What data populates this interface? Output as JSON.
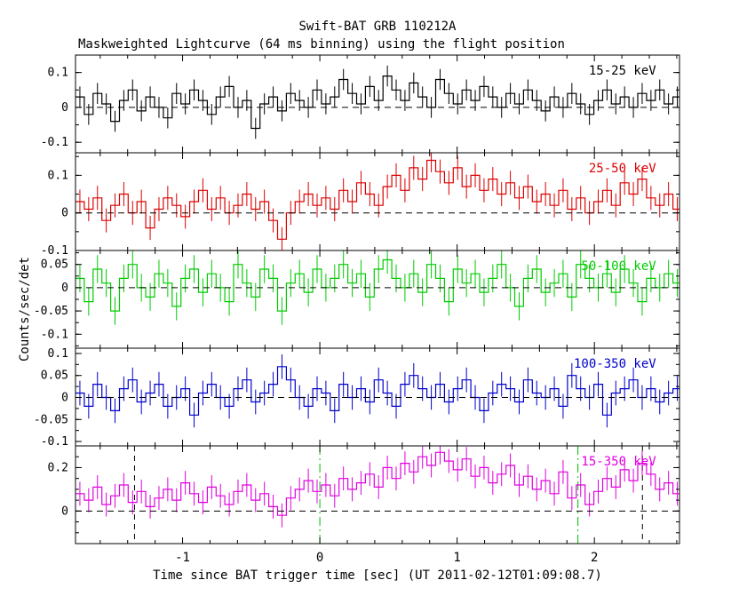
{
  "chart_data": {
    "type": "line",
    "title": "Swift-BAT GRB 110212A",
    "subtitle": "Maskweighted Lightcurve (64 ms binning) using the flight position",
    "xlabel": "Time since BAT trigger time [sec] (UT 2011-02-12T01:09:08.7)",
    "ylabel": "Counts/sec/det",
    "x_range": [
      -1.78,
      2.62
    ],
    "x_ticks": [
      -1,
      0,
      1,
      2
    ],
    "x_minor_step": 0.2,
    "x_start": -1.748,
    "bin_width": 0.064,
    "grid": false,
    "legend_position": "none",
    "vlines": [
      {
        "x": -1.35,
        "color": "#000000",
        "dash": "6,5",
        "name": "duration-marker-start"
      },
      {
        "x": 0.0,
        "color": "#00bb00",
        "dash": "10,4,2,4",
        "name": "t90-start"
      },
      {
        "x": 1.88,
        "color": "#00bb00",
        "dash": "10,4,2,4",
        "name": "t90-end"
      },
      {
        "x": 2.35,
        "color": "#000000",
        "dash": "6,5",
        "name": "duration-marker-end"
      }
    ],
    "panels": [
      {
        "name": "15-25",
        "label": "15-25 keV",
        "color": "#000000",
        "ylim": [
          -0.13,
          0.15
        ],
        "yticks": [
          -0.1,
          0,
          0.1
        ],
        "ytick_minor_step": 0.05,
        "err": 0.03,
        "y": [
          0.03,
          -0.02,
          0.04,
          0.01,
          -0.04,
          0.02,
          0.05,
          -0.01,
          0.03,
          0.0,
          -0.03,
          0.04,
          0.01,
          0.05,
          0.02,
          -0.02,
          0.03,
          0.06,
          0.0,
          0.02,
          -0.06,
          0.01,
          0.03,
          -0.01,
          0.04,
          0.02,
          0.0,
          0.05,
          0.01,
          0.03,
          0.08,
          0.04,
          0.01,
          0.06,
          0.02,
          0.09,
          0.05,
          0.02,
          0.07,
          0.03,
          0.0,
          0.08,
          0.04,
          0.01,
          0.05,
          0.02,
          0.06,
          0.03,
          0.0,
          0.04,
          0.01,
          0.05,
          0.02,
          -0.01,
          0.03,
          0.0,
          0.04,
          0.01,
          -0.02,
          0.02,
          0.05,
          0.01,
          0.03,
          0.0,
          0.04,
          0.02,
          0.05,
          0.01,
          0.03
        ]
      },
      {
        "name": "25-50",
        "label": "25-50 keV",
        "color": "#dd0000",
        "ylim": [
          -0.1,
          0.16
        ],
        "yticks": [
          -0.1,
          0,
          0.1
        ],
        "ytick_minor_step": 0.05,
        "err": 0.032,
        "y": [
          0.03,
          0.01,
          0.04,
          -0.02,
          0.02,
          0.05,
          0.0,
          0.03,
          -0.04,
          0.01,
          0.04,
          0.02,
          -0.01,
          0.03,
          0.06,
          0.01,
          0.04,
          0.0,
          0.02,
          0.05,
          0.01,
          0.03,
          -0.02,
          -0.07,
          0.0,
          0.03,
          0.05,
          0.02,
          0.04,
          0.01,
          0.06,
          0.03,
          0.08,
          0.05,
          0.02,
          0.07,
          0.1,
          0.06,
          0.12,
          0.09,
          0.14,
          0.11,
          0.08,
          0.12,
          0.07,
          0.1,
          0.06,
          0.09,
          0.05,
          0.08,
          0.04,
          0.07,
          0.03,
          0.05,
          0.02,
          0.06,
          0.01,
          0.04,
          0.0,
          0.03,
          0.06,
          0.02,
          0.08,
          0.05,
          0.09,
          0.04,
          0.02,
          0.05,
          0.01
        ]
      },
      {
        "name": "50-100",
        "label": "50-100 keV",
        "color": "#00cc00",
        "ylim": [
          -0.13,
          0.08
        ],
        "yticks": [
          -0.1,
          -0.05,
          0,
          0.05
        ],
        "ytick_minor_step": 0.025,
        "err": 0.03,
        "y": [
          0.02,
          -0.03,
          0.04,
          0.01,
          -0.05,
          0.02,
          0.05,
          0.0,
          -0.02,
          0.03,
          0.01,
          -0.04,
          0.02,
          0.04,
          -0.01,
          0.03,
          0.0,
          -0.03,
          0.05,
          0.01,
          -0.02,
          0.04,
          0.02,
          -0.05,
          0.01,
          0.03,
          -0.01,
          0.04,
          0.0,
          0.02,
          0.05,
          0.01,
          0.03,
          -0.02,
          0.04,
          0.06,
          0.02,
          0.0,
          0.03,
          -0.01,
          0.05,
          0.02,
          -0.03,
          0.04,
          0.01,
          0.03,
          -0.01,
          0.02,
          0.05,
          0.0,
          -0.04,
          0.02,
          0.04,
          -0.01,
          0.01,
          0.03,
          -0.02,
          0.05,
          0.02,
          0.0,
          0.03,
          -0.01,
          0.04,
          0.01,
          -0.03,
          0.02,
          0.0,
          0.03,
          0.01
        ]
      },
      {
        "name": "100-350",
        "label": "100-350 keV",
        "color": "#0000cd",
        "ylim": [
          -0.11,
          0.112
        ],
        "yticks": [
          -0.1,
          -0.05,
          0,
          0.05,
          0.1
        ],
        "ytick_minor_step": 0.025,
        "err": 0.028,
        "y": [
          0.01,
          -0.02,
          0.03,
          0.0,
          -0.03,
          0.02,
          0.04,
          -0.01,
          0.01,
          0.03,
          -0.02,
          0.0,
          0.02,
          -0.04,
          0.01,
          0.03,
          0.0,
          -0.02,
          0.02,
          0.04,
          -0.01,
          0.01,
          0.03,
          0.07,
          0.04,
          0.0,
          -0.02,
          0.02,
          0.01,
          -0.03,
          0.03,
          0.0,
          0.02,
          -0.01,
          0.04,
          0.01,
          -0.02,
          0.03,
          0.05,
          0.02,
          0.0,
          0.03,
          -0.01,
          0.02,
          0.04,
          0.0,
          -0.03,
          0.01,
          0.03,
          0.02,
          -0.01,
          0.04,
          0.01,
          0.0,
          0.02,
          -0.02,
          0.05,
          0.02,
          0.0,
          0.03,
          -0.04,
          0.01,
          0.02,
          0.04,
          0.0,
          0.02,
          -0.01,
          0.01,
          0.02
        ]
      },
      {
        "name": "15-350",
        "label": "15-350 keV",
        "color": "#e000e0",
        "ylim": [
          -0.15,
          0.3
        ],
        "yticks": [
          0,
          0.2
        ],
        "ytick_minor_step": 0.05,
        "err": 0.055,
        "y": [
          0.08,
          0.05,
          0.11,
          0.03,
          0.07,
          0.12,
          0.04,
          0.09,
          0.02,
          0.06,
          0.1,
          0.05,
          0.13,
          0.08,
          0.04,
          0.11,
          0.07,
          0.03,
          0.09,
          0.12,
          0.05,
          0.08,
          0.02,
          -0.02,
          0.06,
          0.1,
          0.14,
          0.09,
          0.12,
          0.07,
          0.15,
          0.1,
          0.13,
          0.17,
          0.11,
          0.2,
          0.15,
          0.22,
          0.18,
          0.25,
          0.21,
          0.27,
          0.23,
          0.19,
          0.24,
          0.16,
          0.2,
          0.13,
          0.17,
          0.21,
          0.12,
          0.16,
          0.1,
          0.14,
          0.08,
          0.18,
          0.06,
          0.12,
          0.03,
          0.09,
          0.15,
          0.11,
          0.19,
          0.14,
          0.22,
          0.17,
          0.1,
          0.13,
          0.08
        ]
      }
    ]
  }
}
